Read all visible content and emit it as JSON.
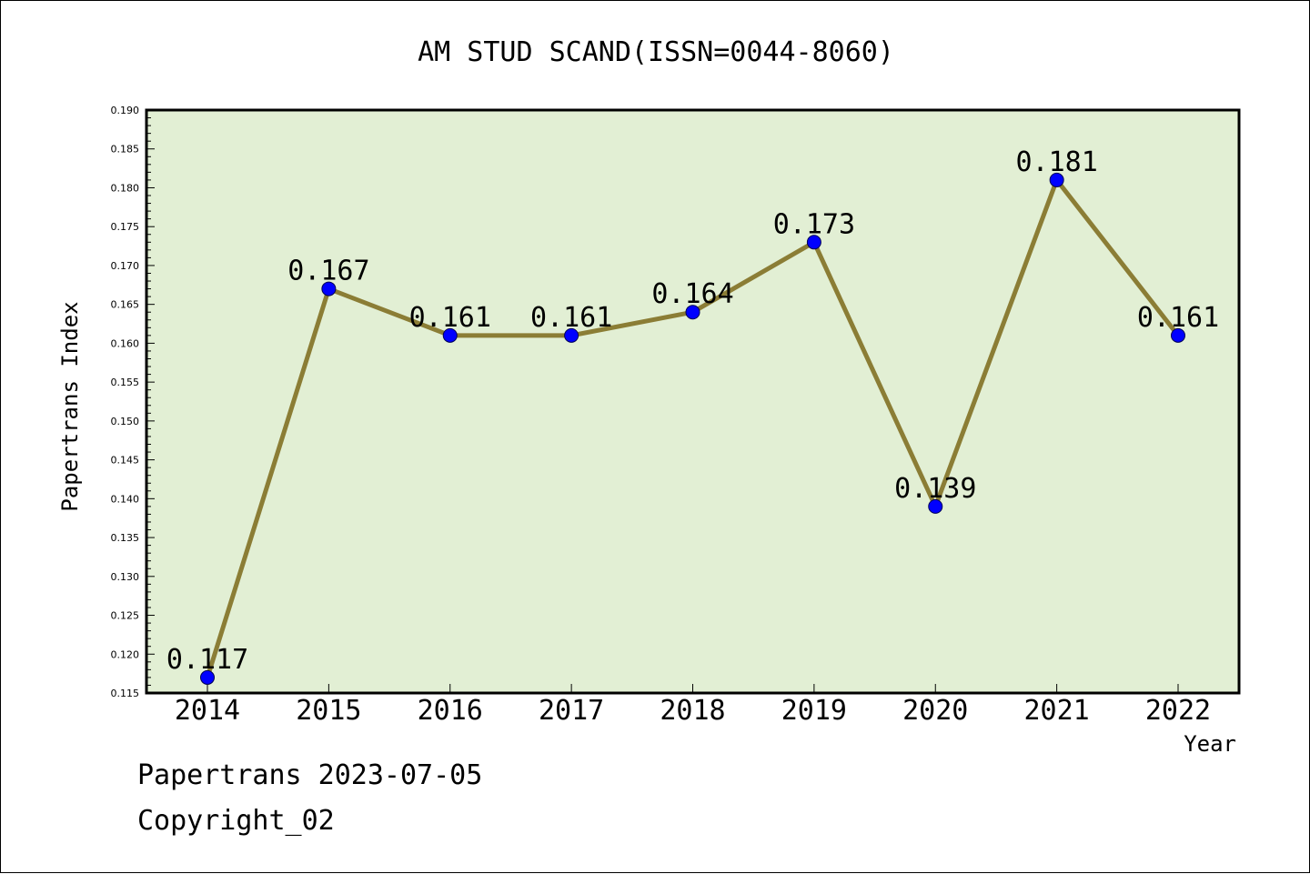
{
  "chart_data": {
    "type": "line",
    "title": "AM STUD SCAND(ISSN=0044-8060)",
    "xlabel": "Year",
    "ylabel": "Papertrans Index",
    "categories": [
      "2014",
      "2015",
      "2016",
      "2017",
      "2018",
      "2019",
      "2020",
      "2021",
      "2022"
    ],
    "values": [
      0.117,
      0.167,
      0.161,
      0.161,
      0.164,
      0.173,
      0.139,
      0.181,
      0.161
    ],
    "value_labels": [
      "0.117",
      "0.167",
      "0.161",
      "0.161",
      "0.164",
      "0.173",
      "0.139",
      "0.181",
      "0.161"
    ],
    "ylim": [
      0.115,
      0.19
    ],
    "yticks": [
      "0.115",
      "0.120",
      "0.125",
      "0.130",
      "0.135",
      "0.140",
      "0.145",
      "0.150",
      "0.155",
      "0.160",
      "0.165",
      "0.170",
      "0.175",
      "0.180",
      "0.185",
      "0.190"
    ],
    "grid": false,
    "colors": {
      "plot_background": "#e2efd4",
      "line": "#8b7d35",
      "marker": "#0000ff"
    }
  },
  "footer": {
    "line1": "Papertrans 2023-07-05",
    "line2": "Copyright_02"
  }
}
